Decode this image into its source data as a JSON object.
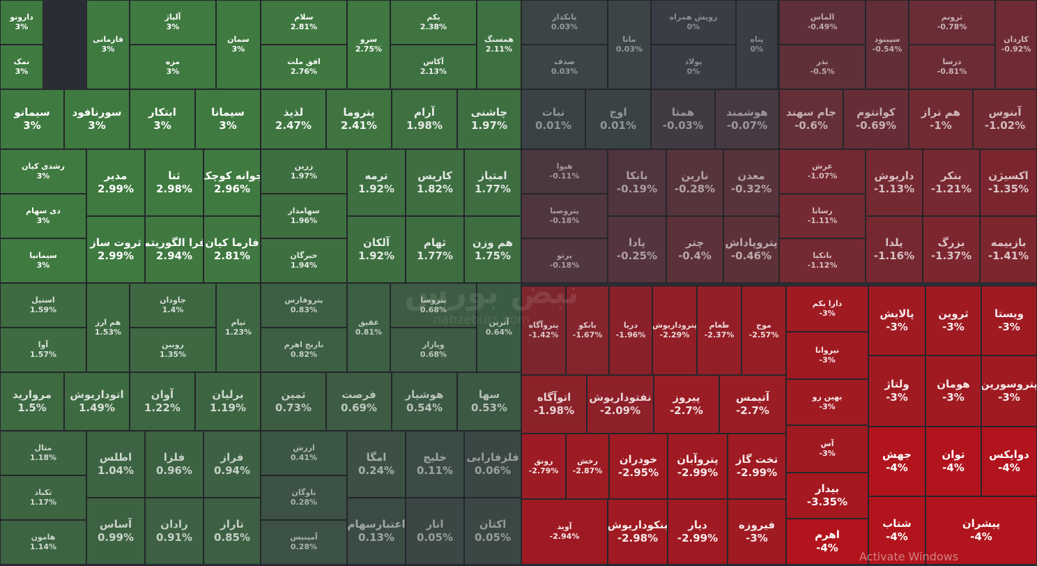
{
  "chart_data": {
    "type": "treemap",
    "title": "",
    "unit": "%",
    "items": [
      {
        "name": "دارونو",
        "change": "3%"
      },
      {
        "name": "نمک",
        "change": "3%"
      },
      {
        "name": "فارمانی",
        "change": "3%"
      },
      {
        "name": "آلیاژ",
        "change": "3%"
      },
      {
        "name": "مزه",
        "change": "3%"
      },
      {
        "name": "سمان",
        "change": "3%"
      },
      {
        "name": "سلام",
        "change": "2.81%"
      },
      {
        "name": "افق ملت",
        "change": "2.76%"
      },
      {
        "name": "سرو",
        "change": "2.75%"
      },
      {
        "name": "یکم",
        "change": "2.38%"
      },
      {
        "name": "آکاس",
        "change": "2.13%"
      },
      {
        "name": "همسنگ",
        "change": "2.11%"
      },
      {
        "name": "سیمانو",
        "change": "3%"
      },
      {
        "name": "سورنافود",
        "change": "3%"
      },
      {
        "name": "ابتکار",
        "change": "3%"
      },
      {
        "name": "سیمانا",
        "change": "3%"
      },
      {
        "name": "لذیذ",
        "change": "2.47%"
      },
      {
        "name": "پتروما",
        "change": "2.41%"
      },
      {
        "name": "آرام",
        "change": "1.98%"
      },
      {
        "name": "چاشنی",
        "change": "1.97%"
      },
      {
        "name": "رشدی کیان",
        "change": "3%"
      },
      {
        "name": "دی سهام",
        "change": "3%"
      },
      {
        "name": "سیمانیا",
        "change": "3%"
      },
      {
        "name": "مدیر",
        "change": "2.99%"
      },
      {
        "name": "ثنا",
        "change": "2.98%"
      },
      {
        "name": "جوانه کوچک",
        "change": "2.96%"
      },
      {
        "name": "ثروت ساز",
        "change": "2.99%"
      },
      {
        "name": "فرا الگوریتم",
        "change": "2.94%"
      },
      {
        "name": "فارما کیان",
        "change": "2.81%"
      },
      {
        "name": "زرین",
        "change": "1.97%"
      },
      {
        "name": "سهامدار",
        "change": "1.96%"
      },
      {
        "name": "خبرگان",
        "change": "1.94%"
      },
      {
        "name": "ترمه",
        "change": "1.92%"
      },
      {
        "name": "کاریس",
        "change": "1.82%"
      },
      {
        "name": "امتیاز",
        "change": "1.77%"
      },
      {
        "name": "آلکان",
        "change": "1.92%"
      },
      {
        "name": "ثهام",
        "change": "1.77%"
      },
      {
        "name": "هم وزن",
        "change": "1.75%"
      },
      {
        "name": "استیل",
        "change": "1.59%"
      },
      {
        "name": "آوا",
        "change": "1.57%"
      },
      {
        "name": "هم ارز",
        "change": "1.53%"
      },
      {
        "name": "جاودان",
        "change": "1.4%"
      },
      {
        "name": "روبین",
        "change": "1.35%"
      },
      {
        "name": "تیام",
        "change": "1.23%"
      },
      {
        "name": "پتروفارس",
        "change": "0.83%"
      },
      {
        "name": "نارنج اهرم",
        "change": "0.82%"
      },
      {
        "name": "عقیق",
        "change": "0.81%"
      },
      {
        "name": "پتروسا",
        "change": "0.68%"
      },
      {
        "name": "ویازار",
        "change": "0.68%"
      },
      {
        "name": "آترین",
        "change": "0.64%"
      },
      {
        "name": "مروارید",
        "change": "1.5%"
      },
      {
        "name": "اتوداریوش",
        "change": "1.49%"
      },
      {
        "name": "آوان",
        "change": "1.22%"
      },
      {
        "name": "برلیان",
        "change": "1.19%"
      },
      {
        "name": "ثمین",
        "change": "0.73%"
      },
      {
        "name": "فرصت",
        "change": "0.69%"
      },
      {
        "name": "هوشیار",
        "change": "0.54%"
      },
      {
        "name": "سها",
        "change": "0.53%"
      },
      {
        "name": "متال",
        "change": "1.18%"
      },
      {
        "name": "تکباد",
        "change": "1.17%"
      },
      {
        "name": "هامون",
        "change": "1.14%"
      },
      {
        "name": "اطلس",
        "change": "1.04%"
      },
      {
        "name": "فلزا",
        "change": "0.96%"
      },
      {
        "name": "فراز",
        "change": "0.94%"
      },
      {
        "name": "آساس",
        "change": "0.99%"
      },
      {
        "name": "رادان",
        "change": "0.91%"
      },
      {
        "name": "تاراز",
        "change": "0.85%"
      },
      {
        "name": "ارزش",
        "change": "0.41%"
      },
      {
        "name": "ناوگان",
        "change": "0.28%"
      },
      {
        "name": "آمیتیس",
        "change": "0.28%"
      },
      {
        "name": "امگا",
        "change": "0.24%"
      },
      {
        "name": "خلیج",
        "change": "0.11%"
      },
      {
        "name": "فلزفارابی",
        "change": "0.06%"
      },
      {
        "name": "اعتبارسهام",
        "change": "0.13%"
      },
      {
        "name": "انار",
        "change": "0.05%"
      },
      {
        "name": "اکتان",
        "change": "0.05%"
      },
      {
        "name": "بانکدار",
        "change": "0.03%"
      },
      {
        "name": "صدف",
        "change": "0.03%"
      },
      {
        "name": "مانا",
        "change": "0.03%"
      },
      {
        "name": "رویش همراه",
        "change": "0%"
      },
      {
        "name": "پولاد",
        "change": "0%"
      },
      {
        "name": "پناه",
        "change": "0%"
      },
      {
        "name": "نبات",
        "change": "0.01%"
      },
      {
        "name": "اوج",
        "change": "0.01%"
      },
      {
        "name": "همتا",
        "change": "-0.03%"
      },
      {
        "name": "هوشمند",
        "change": "-0.07%"
      },
      {
        "name": "هیوا",
        "change": "-0.11%"
      },
      {
        "name": "پتروصبا",
        "change": "-0.18%"
      },
      {
        "name": "پرتو",
        "change": "-0.18%"
      },
      {
        "name": "بانکا",
        "change": "-0.19%"
      },
      {
        "name": "نارین",
        "change": "-0.28%"
      },
      {
        "name": "معدن",
        "change": "-0.32%"
      },
      {
        "name": "پادا",
        "change": "-0.25%"
      },
      {
        "name": "چتر",
        "change": "-0.4%"
      },
      {
        "name": "پتروپاداش",
        "change": "-0.46%"
      },
      {
        "name": "الماس",
        "change": "-0.49%"
      },
      {
        "name": "بذر",
        "change": "-0.5%"
      },
      {
        "name": "سپینود",
        "change": "-0.54%"
      },
      {
        "name": "ثروتم",
        "change": "-0.78%"
      },
      {
        "name": "درسا",
        "change": "-0.81%"
      },
      {
        "name": "کاردان",
        "change": "-0.92%"
      },
      {
        "name": "جام سهند",
        "change": "-0.6%"
      },
      {
        "name": "کوانتوم",
        "change": "-0.69%"
      },
      {
        "name": "هم تراز",
        "change": "-1%"
      },
      {
        "name": "آبنوس",
        "change": "-1.02%"
      },
      {
        "name": "عرش",
        "change": "-1.07%"
      },
      {
        "name": "رسانا",
        "change": "-1.11%"
      },
      {
        "name": "بانکیا",
        "change": "-1.12%"
      },
      {
        "name": "داریوش",
        "change": "-1.13%"
      },
      {
        "name": "بنکر",
        "change": "-1.21%"
      },
      {
        "name": "اکسیژن",
        "change": "-1.35%"
      },
      {
        "name": "یلدا",
        "change": "-1.16%"
      },
      {
        "name": "بزرگ",
        "change": "-1.37%"
      },
      {
        "name": "بازبیمه",
        "change": "-1.41%"
      },
      {
        "name": "پتروآگاه",
        "change": "-1.42%"
      },
      {
        "name": "بانکو",
        "change": "-1.67%"
      },
      {
        "name": "دریا",
        "change": "-1.96%"
      },
      {
        "name": "پتروداریوش",
        "change": "-2.29%"
      },
      {
        "name": "طعام",
        "change": "-2.37%"
      },
      {
        "name": "موج",
        "change": "-2.57%"
      },
      {
        "name": "اتوآگاه",
        "change": "-1.98%"
      },
      {
        "name": "نفتوداریوش",
        "change": "-2.09%"
      },
      {
        "name": "پیروز",
        "change": "-2.7%"
      },
      {
        "name": "آتیمس",
        "change": "-2.7%"
      },
      {
        "name": "رونق",
        "change": "-2.79%"
      },
      {
        "name": "رخش",
        "change": "-2.87%"
      },
      {
        "name": "خودران",
        "change": "-2.95%"
      },
      {
        "name": "پتروآبان",
        "change": "-2.99%"
      },
      {
        "name": "تخت گاز",
        "change": "-2.99%"
      },
      {
        "name": "آوید",
        "change": "-2.94%"
      },
      {
        "name": "بنکوداریوش",
        "change": "-2.98%"
      },
      {
        "name": "دیار",
        "change": "-2.99%"
      },
      {
        "name": "فیروزه",
        "change": "-3%"
      },
      {
        "name": "دارا یکم",
        "change": "-3%"
      },
      {
        "name": "نیروانا",
        "change": "-3%"
      },
      {
        "name": "بهین رو",
        "change": "-3%"
      },
      {
        "name": "آس",
        "change": "-3%"
      },
      {
        "name": "بیدار",
        "change": "-3.35%"
      },
      {
        "name": "اهرم",
        "change": "-4%"
      },
      {
        "name": "پالایش",
        "change": "-3%"
      },
      {
        "name": "ثروین",
        "change": "-3%"
      },
      {
        "name": "ویستا",
        "change": "-3%"
      },
      {
        "name": "ولتاژ",
        "change": "-3%"
      },
      {
        "name": "هومان",
        "change": "-3%"
      },
      {
        "name": "پتروسورین",
        "change": "-3%"
      },
      {
        "name": "جهش",
        "change": "-4%"
      },
      {
        "name": "توان",
        "change": "-4%"
      },
      {
        "name": "دوایکس",
        "change": "-4%"
      },
      {
        "name": "شتاب",
        "change": "-4%"
      },
      {
        "name": "پیشران",
        "change": "-4%"
      }
    ]
  },
  "watermark": {
    "brand": "نبض بورس",
    "url": "nabzeburs.com"
  },
  "os_overlay": {
    "activate_text": "Activate Windows"
  },
  "colors": {
    "positive_max": "#3f7a40",
    "neutral": "#3a3d46",
    "negative_max": "#b1141c"
  }
}
